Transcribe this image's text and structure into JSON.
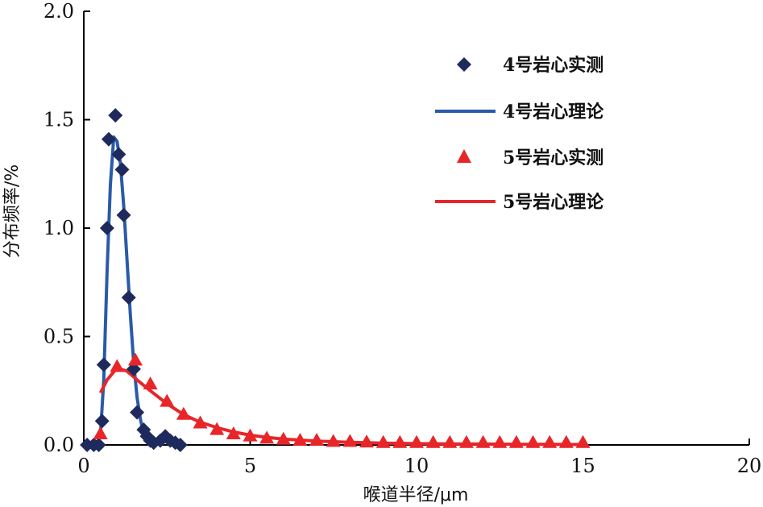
{
  "chart_data": {
    "type": "scatter",
    "xlabel": "喉道半径/μm",
    "ylabel": "分布频率/%",
    "xlim": [
      0,
      20
    ],
    "ylim": [
      0,
      2.0
    ],
    "x_ticks": [
      "0",
      "5",
      "10",
      "15",
      "20"
    ],
    "y_ticks": [
      "0.0",
      "0.5",
      "1.0",
      "1.5",
      "2.0"
    ],
    "grid": false,
    "legend_position": "top-right",
    "series": [
      {
        "name": "4号岩心实测",
        "kind": "scatter",
        "marker": "diamond",
        "color": "#1f2a5c",
        "points": [
          [
            0.1,
            0.0
          ],
          [
            0.3,
            0.0
          ],
          [
            0.45,
            0.0
          ],
          [
            0.55,
            0.11
          ],
          [
            0.6,
            0.37
          ],
          [
            0.7,
            1.0
          ],
          [
            0.75,
            1.41
          ],
          [
            0.95,
            1.52
          ],
          [
            1.05,
            1.34
          ],
          [
            1.15,
            1.27
          ],
          [
            1.2,
            1.06
          ],
          [
            1.35,
            0.68
          ],
          [
            1.5,
            0.35
          ],
          [
            1.6,
            0.15
          ],
          [
            1.8,
            0.07
          ],
          [
            1.9,
            0.04
          ],
          [
            2.0,
            0.02
          ],
          [
            2.1,
            0.01
          ],
          [
            2.3,
            0.02
          ],
          [
            2.45,
            0.04
          ],
          [
            2.6,
            0.02
          ],
          [
            2.75,
            0.01
          ],
          [
            2.9,
            0.0
          ]
        ]
      },
      {
        "name": "4号岩心理论",
        "kind": "line",
        "color": "#2a5aa8",
        "points": [
          [
            0.4,
            0.0
          ],
          [
            0.5,
            0.05
          ],
          [
            0.6,
            0.3
          ],
          [
            0.7,
            0.8
          ],
          [
            0.8,
            1.2
          ],
          [
            0.9,
            1.42
          ],
          [
            1.0,
            1.4
          ],
          [
            1.1,
            1.3
          ],
          [
            1.2,
            1.1
          ],
          [
            1.3,
            0.85
          ],
          [
            1.4,
            0.6
          ],
          [
            1.5,
            0.38
          ],
          [
            1.6,
            0.22
          ],
          [
            1.7,
            0.12
          ],
          [
            1.8,
            0.05
          ],
          [
            1.9,
            0.02
          ],
          [
            2.0,
            0.01
          ],
          [
            2.2,
            0.0
          ]
        ]
      },
      {
        "name": "5号岩心实测",
        "kind": "scatter",
        "marker": "triangle",
        "color": "#e8262a",
        "points": [
          [
            0.5,
            0.05
          ],
          [
            1.0,
            0.36
          ],
          [
            1.55,
            0.39
          ],
          [
            2.0,
            0.28
          ],
          [
            2.5,
            0.2
          ],
          [
            3.0,
            0.14
          ],
          [
            3.5,
            0.1
          ],
          [
            4.0,
            0.07
          ],
          [
            4.5,
            0.05
          ],
          [
            5.0,
            0.04
          ],
          [
            5.5,
            0.03
          ],
          [
            6.0,
            0.025
          ],
          [
            6.5,
            0.02
          ],
          [
            7.0,
            0.02
          ],
          [
            7.5,
            0.015
          ],
          [
            8.0,
            0.015
          ],
          [
            8.5,
            0.012
          ],
          [
            9.0,
            0.01
          ],
          [
            9.5,
            0.01
          ],
          [
            10.0,
            0.01
          ],
          [
            10.5,
            0.01
          ],
          [
            11.0,
            0.01
          ],
          [
            11.5,
            0.01
          ],
          [
            12.0,
            0.01
          ],
          [
            12.5,
            0.01
          ],
          [
            13.0,
            0.01
          ],
          [
            13.5,
            0.01
          ],
          [
            14.0,
            0.01
          ],
          [
            14.5,
            0.01
          ],
          [
            15.0,
            0.01
          ]
        ]
      },
      {
        "name": "5号岩心理论",
        "kind": "line",
        "color": "#e8262a",
        "points": [
          [
            0.5,
            0.24
          ],
          [
            0.7,
            0.3
          ],
          [
            1.0,
            0.355
          ],
          [
            1.3,
            0.34
          ],
          [
            1.6,
            0.3
          ],
          [
            2.0,
            0.25
          ],
          [
            2.5,
            0.19
          ],
          [
            3.0,
            0.14
          ],
          [
            3.5,
            0.105
          ],
          [
            4.0,
            0.08
          ],
          [
            4.5,
            0.06
          ],
          [
            5.0,
            0.045
          ],
          [
            5.5,
            0.035
          ],
          [
            6.0,
            0.027
          ],
          [
            7.0,
            0.018
          ],
          [
            8.0,
            0.012
          ],
          [
            9.0,
            0.008
          ],
          [
            10.0,
            0.006
          ],
          [
            11.0,
            0.005
          ],
          [
            12.0,
            0.004
          ],
          [
            13.0,
            0.003
          ],
          [
            14.0,
            0.003
          ],
          [
            15.0,
            0.002
          ]
        ]
      }
    ]
  }
}
